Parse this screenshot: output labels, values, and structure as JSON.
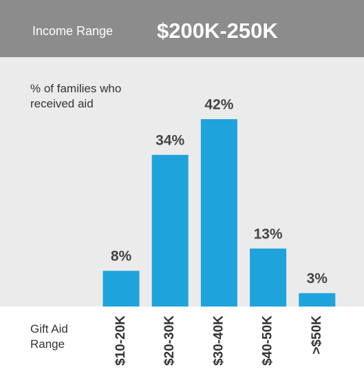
{
  "header": {
    "label": "Income Range",
    "value": "$200K-250K"
  },
  "chart_data": {
    "type": "bar",
    "title": "% of families who received aid",
    "x_label": "Gift Aid Range",
    "categories": [
      "$10-20K",
      "$20-30K",
      "$30-40K",
      "$40-50K",
      ">$50K"
    ],
    "values": [
      8,
      34,
      42,
      13,
      3
    ],
    "value_labels": [
      "8%",
      "34%",
      "42%",
      "13%",
      "3%"
    ],
    "color": "#1fa3dc"
  }
}
